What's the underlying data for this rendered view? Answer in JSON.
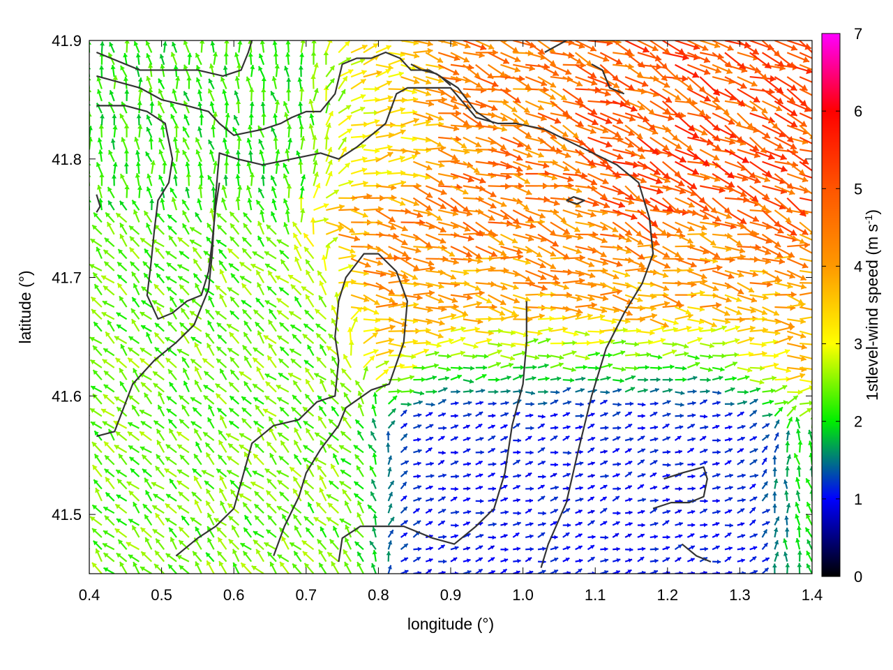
{
  "chart_data": {
    "type": "vector-field",
    "title": "",
    "xlabel": "longitude (°)",
    "ylabel": "latitude (°)",
    "xlim": [
      0.4,
      1.4
    ],
    "ylim": [
      41.45,
      41.9
    ],
    "xticks": [
      "0.4",
      "0.5",
      "0.6",
      "0.7",
      "0.8",
      "0.9",
      "1.0",
      "1.1",
      "1.2",
      "1.3",
      "1.4"
    ],
    "yticks": [
      "41.5",
      "41.6",
      "41.7",
      "41.8",
      "41.9"
    ],
    "xtick_values": [
      0.4,
      0.5,
      0.6,
      0.7,
      0.8,
      0.9,
      1.0,
      1.1,
      1.2,
      1.3,
      1.4
    ],
    "ytick_values": [
      41.5,
      41.6,
      41.7,
      41.8,
      41.9
    ],
    "grid": false,
    "colorbar": {
      "label_prefix": "1stlevel-wind speed (m s",
      "label_sup": "-1",
      "label_suffix": ")",
      "range": [
        0,
        7
      ],
      "ticks": [
        "0",
        "1",
        "2",
        "3",
        "4",
        "5",
        "6",
        "7"
      ],
      "tick_values": [
        0,
        1,
        2,
        3,
        4,
        5,
        6,
        7
      ],
      "colormap": [
        [
          0,
          "#000000"
        ],
        [
          1,
          "#0000ff"
        ],
        [
          2,
          "#00ee00"
        ],
        [
          3,
          "#ffff00"
        ],
        [
          4,
          "#ff9900"
        ],
        [
          5,
          "#ff5500"
        ],
        [
          6,
          "#ff0000"
        ],
        [
          7,
          "#ff00ff"
        ]
      ]
    },
    "wind_regions": [
      {
        "lon": [
          0.8,
          1.4
        ],
        "lat": [
          41.7,
          41.9
        ],
        "speed": 4.6,
        "direction_deg": 340
      },
      {
        "lon": [
          1.15,
          1.4
        ],
        "lat": [
          41.78,
          41.88
        ],
        "speed": 5.5,
        "direction_deg": 330
      },
      {
        "lon": [
          0.85,
          1.4
        ],
        "lat": [
          41.64,
          41.7
        ],
        "speed": 3.6,
        "direction_deg": 0
      },
      {
        "lon": [
          0.9,
          1.25
        ],
        "lat": [
          41.45,
          41.62
        ],
        "speed": 1.0,
        "direction_deg": 10
      },
      {
        "lon": [
          0.4,
          0.7
        ],
        "lat": [
          41.45,
          41.7
        ],
        "speed": 2.4,
        "direction_deg": 135
      },
      {
        "lon": [
          0.4,
          0.8
        ],
        "lat": [
          41.8,
          41.9
        ],
        "speed": 2.1,
        "direction_deg": 100
      }
    ],
    "contours": [
      [
        [
          0.41,
          41.566
        ],
        [
          0.435,
          41.57
        ],
        [
          0.46,
          41.61
        ],
        [
          0.49,
          41.63
        ],
        [
          0.52,
          41.645
        ],
        [
          0.545,
          41.66
        ],
        [
          0.565,
          41.69
        ],
        [
          0.57,
          41.72
        ],
        [
          0.575,
          41.77
        ],
        [
          0.58,
          41.805
        ],
        [
          0.605,
          41.8
        ],
        [
          0.64,
          41.795
        ],
        [
          0.68,
          41.8
        ],
        [
          0.72,
          41.805
        ],
        [
          0.745,
          41.8
        ],
        [
          0.77,
          41.81
        ],
        [
          0.79,
          41.82
        ],
        [
          0.81,
          41.83
        ],
        [
          0.825,
          41.855
        ],
        [
          0.84,
          41.86
        ],
        [
          0.87,
          41.86
        ],
        [
          0.9,
          41.86
        ],
        [
          0.935,
          41.835
        ],
        [
          0.965,
          41.83
        ],
        [
          0.99,
          41.83
        ],
        [
          1.03,
          41.825
        ],
        [
          1.08,
          41.81
        ],
        [
          1.13,
          41.795
        ],
        [
          1.16,
          41.78
        ],
        [
          1.175,
          41.75
        ],
        [
          1.18,
          41.72
        ],
        [
          1.165,
          41.695
        ],
        [
          1.14,
          41.67
        ],
        [
          1.115,
          41.64
        ],
        [
          1.095,
          41.6
        ],
        [
          1.075,
          41.55
        ],
        [
          1.06,
          41.51
        ],
        [
          1.035,
          41.475
        ],
        [
          1.025,
          41.455
        ]
      ],
      [
        [
          0.52,
          41.465
        ],
        [
          0.55,
          41.48
        ],
        [
          0.575,
          41.49
        ],
        [
          0.6,
          41.505
        ],
        [
          0.625,
          41.56
        ],
        [
          0.655,
          41.575
        ],
        [
          0.69,
          41.58
        ],
        [
          0.715,
          41.595
        ],
        [
          0.74,
          41.6
        ],
        [
          0.745,
          41.63
        ],
        [
          0.74,
          41.65
        ],
        [
          0.745,
          41.68
        ],
        [
          0.755,
          41.7
        ],
        [
          0.78,
          41.72
        ],
        [
          0.8,
          41.72
        ],
        [
          0.825,
          41.705
        ],
        [
          0.84,
          41.68
        ],
        [
          0.835,
          41.645
        ],
        [
          0.815,
          41.61
        ],
        [
          0.79,
          41.605
        ],
        [
          0.755,
          41.59
        ],
        [
          0.745,
          41.575
        ],
        [
          0.72,
          41.555
        ],
        [
          0.7,
          41.535
        ],
        [
          0.69,
          41.515
        ],
        [
          0.67,
          41.49
        ],
        [
          0.655,
          41.465
        ]
      ],
      [
        [
          0.745,
          41.46
        ],
        [
          0.75,
          41.48
        ],
        [
          0.775,
          41.49
        ],
        [
          0.805,
          41.49
        ],
        [
          0.835,
          41.49
        ],
        [
          0.875,
          41.48
        ],
        [
          0.905,
          41.475
        ],
        [
          0.935,
          41.49
        ],
        [
          0.96,
          41.505
        ],
        [
          0.975,
          41.535
        ],
        [
          0.985,
          41.575
        ],
        [
          1.0,
          41.61
        ],
        [
          1.005,
          41.645
        ],
        [
          1.005,
          41.68
        ]
      ],
      [
        [
          0.41,
          41.87
        ],
        [
          0.44,
          41.865
        ],
        [
          0.47,
          41.86
        ],
        [
          0.5,
          41.85
        ],
        [
          0.535,
          41.845
        ],
        [
          0.565,
          41.84
        ],
        [
          0.58,
          41.83
        ],
        [
          0.6,
          41.82
        ],
        [
          0.64,
          41.825
        ],
        [
          0.665,
          41.83
        ],
        [
          0.68,
          41.835
        ],
        [
          0.7,
          41.84
        ],
        [
          0.72,
          41.84
        ],
        [
          0.74,
          41.855
        ],
        [
          0.75,
          41.88
        ],
        [
          0.77,
          41.885
        ],
        [
          0.79,
          41.885
        ],
        [
          0.81,
          41.89
        ],
        [
          0.83,
          41.885
        ],
        [
          0.845,
          41.875
        ],
        [
          0.87,
          41.875
        ],
        [
          0.885,
          41.87
        ],
        [
          0.9,
          41.862
        ]
      ],
      [
        [
          0.845,
          41.88
        ],
        [
          0.86,
          41.875
        ],
        [
          0.88,
          41.872
        ],
        [
          0.91,
          41.86
        ],
        [
          0.935,
          41.84
        ],
        [
          0.96,
          41.83
        ]
      ],
      [
        [
          0.41,
          41.89
        ],
        [
          0.43,
          41.885
        ],
        [
          0.47,
          41.875
        ],
        [
          0.51,
          41.875
        ],
        [
          0.55,
          41.875
        ],
        [
          0.585,
          41.87
        ],
        [
          0.61,
          41.875
        ],
        [
          0.62,
          41.89
        ],
        [
          0.625,
          41.9
        ]
      ],
      [
        [
          0.41,
          41.845
        ],
        [
          0.45,
          41.845
        ],
        [
          0.48,
          41.84
        ],
        [
          0.505,
          41.83
        ],
        [
          0.515,
          41.8
        ],
        [
          0.51,
          41.78
        ],
        [
          0.495,
          41.765
        ],
        [
          0.49,
          41.74
        ],
        [
          0.485,
          41.71
        ],
        [
          0.48,
          41.685
        ],
        [
          0.495,
          41.665
        ],
        [
          0.515,
          41.67
        ],
        [
          0.535,
          41.68
        ],
        [
          0.555,
          41.685
        ],
        [
          0.565,
          41.705
        ],
        [
          0.57,
          41.73
        ],
        [
          0.575,
          41.76
        ],
        [
          0.58,
          41.78
        ]
      ],
      [
        [
          0.41,
          41.755
        ],
        [
          0.415,
          41.76
        ],
        [
          0.41,
          41.77
        ]
      ],
      [
        [
          1.03,
          41.89
        ],
        [
          1.045,
          41.895
        ],
        [
          1.06,
          41.9
        ]
      ],
      [
        [
          1.095,
          41.88
        ],
        [
          1.11,
          41.875
        ],
        [
          1.12,
          41.86
        ],
        [
          1.14,
          41.855
        ]
      ],
      [
        [
          1.22,
          41.475
        ],
        [
          1.24,
          41.465
        ],
        [
          1.26,
          41.46
        ]
      ],
      [
        [
          1.18,
          41.505
        ],
        [
          1.205,
          41.51
        ],
        [
          1.23,
          41.51
        ],
        [
          1.25,
          41.515
        ],
        [
          1.255,
          41.53
        ],
        [
          1.25,
          41.54
        ],
        [
          1.22,
          41.535
        ],
        [
          1.195,
          41.53
        ]
      ],
      [
        [
          1.06,
          41.765
        ],
        [
          1.075,
          41.762
        ],
        [
          1.085,
          41.765
        ],
        [
          1.07,
          41.768
        ],
        [
          1.06,
          41.765
        ]
      ]
    ]
  }
}
